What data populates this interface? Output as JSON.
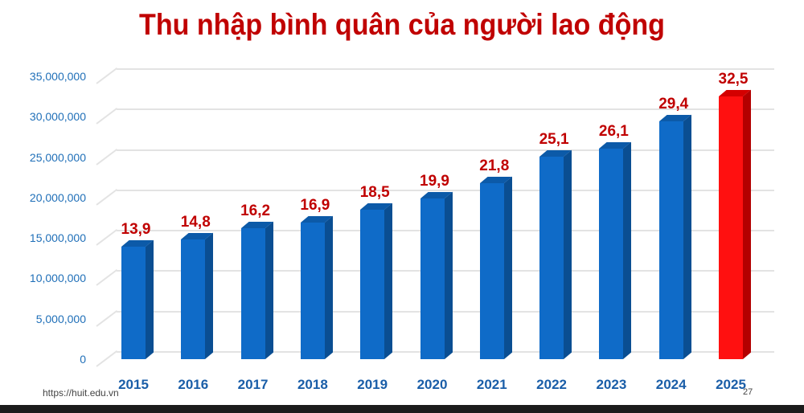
{
  "title": "Thu nhập bình quân của người lao động",
  "footer": {
    "url": "https://huit.edu.vn",
    "page_number": "27"
  },
  "colors": {
    "bar": "#0f6bc8",
    "bar_highlight": "#ff1010",
    "title": "#c00000",
    "axis_text": "#1f6fb8",
    "value_label": "#c00000"
  },
  "chart_data": {
    "type": "bar",
    "title": "Thu nhập bình quân của người lao động",
    "xlabel": "",
    "ylabel": "",
    "categories": [
      "2015",
      "2016",
      "2017",
      "2018",
      "2019",
      "2020",
      "2021",
      "2022",
      "2023",
      "2024",
      "2025"
    ],
    "values": [
      13900000,
      14800000,
      16200000,
      16900000,
      18500000,
      19900000,
      21800000,
      25100000,
      26100000,
      29400000,
      32500000
    ],
    "value_labels": [
      "13,9",
      "14,8",
      "16,2",
      "16,9",
      "18,5",
      "19,9",
      "21,8",
      "25,1",
      "26,1",
      "29,4",
      "32,5"
    ],
    "highlight_category": "2025",
    "ylim": [
      0,
      35000000
    ],
    "yticks": [
      "0",
      "5,000,000",
      "10,000,000",
      "15,000,000",
      "20,000,000",
      "25,000,000",
      "30,000,000",
      "35,000,000"
    ],
    "grid": true,
    "style": "3d-column"
  }
}
